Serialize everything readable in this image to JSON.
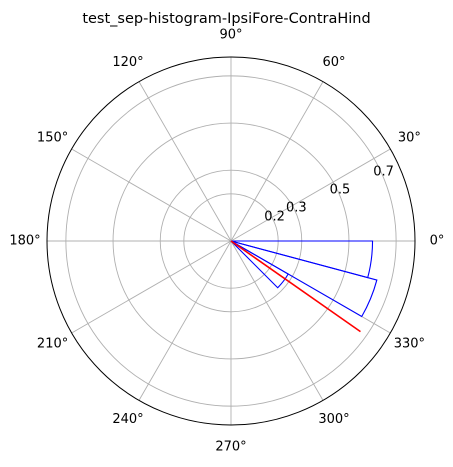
{
  "chart_data": {
    "type": "polar-histogram",
    "title": "test_sep-histogram-IpsiFore-ContraHind",
    "theta_unit": "degrees",
    "theta_ticks": [
      0,
      30,
      60,
      90,
      120,
      150,
      180,
      210,
      240,
      270,
      300,
      330
    ],
    "theta_tick_labels": [
      "0°",
      "30°",
      "60°",
      "90°",
      "120°",
      "150°",
      "180°",
      "210°",
      "240°",
      "270°",
      "300°",
      "330°"
    ],
    "r_ticks": [
      0.2,
      0.3,
      0.5,
      0.7
    ],
    "r_tick_labels": [
      "0.2",
      "0.3",
      "0.5",
      "0.7"
    ],
    "r_tick_label_angle_deg": 22.5,
    "rlim": [
      0,
      0.78
    ],
    "grid": true,
    "bins": [
      {
        "theta_start": 315,
        "theta_end": 330,
        "value": 0.28
      },
      {
        "theta_start": 330,
        "theta_end": 345,
        "value": 0.64
      },
      {
        "theta_start": 345,
        "theta_end": 360,
        "value": 0.6
      }
    ],
    "mean_direction": {
      "theta": 325,
      "r": 0.67
    },
    "colors": {
      "bars": "#0000ff",
      "mean_line": "#ff0000",
      "grid": "#b0b0b0",
      "frame": "#000000"
    }
  }
}
